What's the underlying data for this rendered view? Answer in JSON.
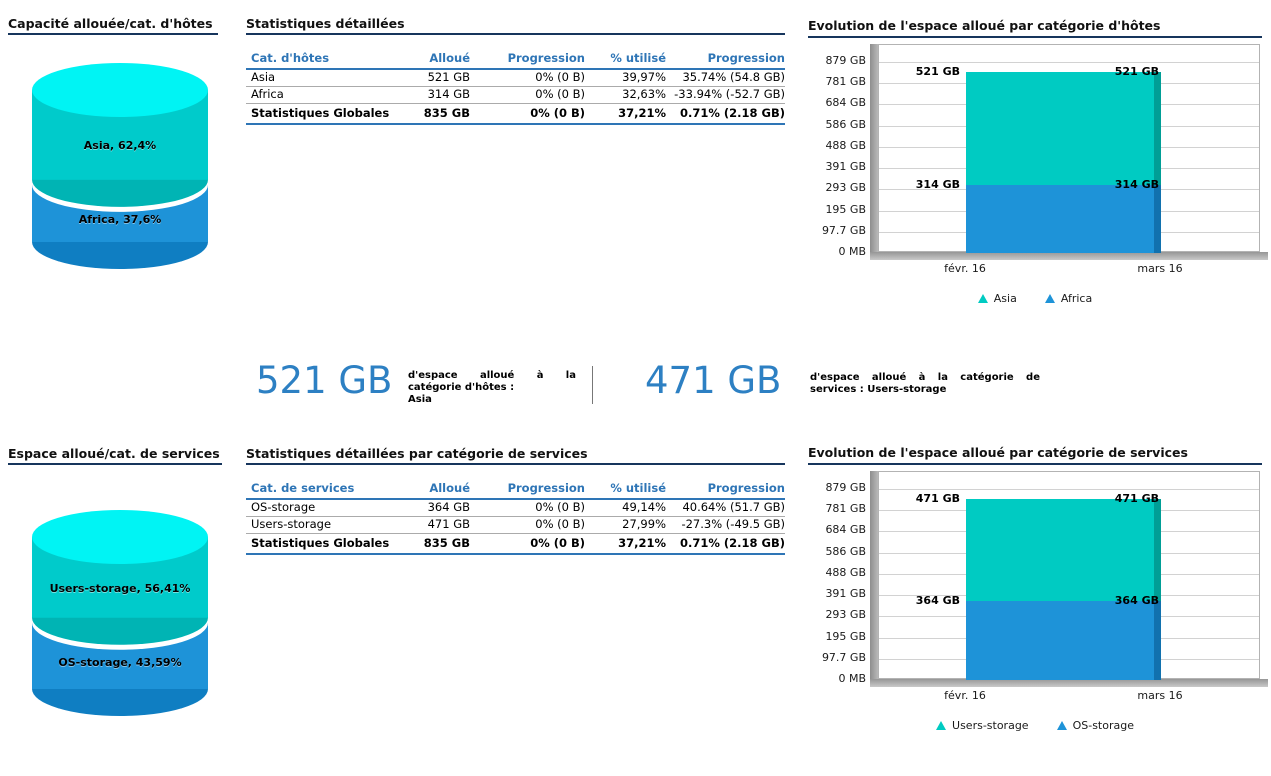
{
  "summary": {
    "value1": "521 GB",
    "desc1_prefix": "d'espace alloué à la catégorie d'hôtes :",
    "desc1_name": "Asia",
    "value2": "471 GB",
    "desc2_prefix": "d'espace alloué à la catégorie de services :",
    "desc2_name": "Users-storage"
  },
  "tables": {
    "host": {
      "title": "Statistiques détaillées",
      "columns": [
        "Cat. d'hôtes",
        "Alloué",
        "Progression",
        "% utilisé",
        "Progression"
      ],
      "rows": [
        [
          "Asia",
          "521 GB",
          "0% (0 B)",
          "39,97%",
          "35.74% (54.8 GB)"
        ],
        [
          "Africa",
          "314 GB",
          "0% (0 B)",
          "32,63%",
          "-33.94% (-52.7 GB)"
        ]
      ],
      "totals": [
        "Statistiques Globales",
        "835 GB",
        "0% (0 B)",
        "37,21%",
        "0.71% (2.18 GB)"
      ]
    },
    "service": {
      "title": "Statistiques détaillées par catégorie de services",
      "columns": [
        "Cat. de services",
        "Alloué",
        "Progression",
        "% utilisé",
        "Progression"
      ],
      "rows": [
        [
          "OS-storage",
          "364 GB",
          "0% (0 B)",
          "49,14%",
          "40.64% (51.7 GB)"
        ],
        [
          "Users-storage",
          "471 GB",
          "0% (0 B)",
          "27,99%",
          "-27.3% (-49.5 GB)"
        ]
      ],
      "totals": [
        "Statistiques Globales",
        "835 GB",
        "0% (0 B)",
        "37,21%",
        "0.71% (2.18 GB)"
      ]
    }
  },
  "chart_data": [
    {
      "type": "pie",
      "subtype": "cylinder-3d",
      "title": "Capacité allouée/cat. d'hôtes",
      "labels": [
        "Asia",
        "Africa"
      ],
      "values_pct": [
        62.4,
        37.6
      ],
      "display_labels": [
        "Asia, 62,4%",
        "Africa, 37,6%"
      ],
      "colors": [
        {
          "top": "#00f4f4",
          "body": "#00cbcb",
          "dark": "#00b4b4"
        },
        {
          "body": "#1e93d8",
          "dark": "#0f7ec2"
        }
      ]
    },
    {
      "type": "bar",
      "subtype": "stacked-3d",
      "title": "Evolution de l'espace alloué par catégorie d'hôtes",
      "x_labels": [
        "févr. 16",
        "mars 16"
      ],
      "y_ticks": [
        "879 GB",
        "781 GB",
        "684 GB",
        "586 GB",
        "488 GB",
        "391 GB",
        "293 GB",
        "195 GB",
        "97.7 GB",
        "0 MB"
      ],
      "y_max_gb": 879,
      "total_gb": 835,
      "series": [
        {
          "name": "Asia",
          "values_gb": [
            521,
            521
          ],
          "bar_label": "521 GB",
          "color": "#00cbc2",
          "dark": "#009e96"
        },
        {
          "name": "Africa",
          "values_gb": [
            314,
            314
          ],
          "bar_label": "314 GB",
          "color": "#1e93d8",
          "dark": "#1171ae"
        }
      ],
      "legend": [
        "Asia",
        "Africa"
      ],
      "legend_position": "bottom",
      "grid": true
    },
    {
      "type": "pie",
      "subtype": "cylinder-3d",
      "title": "Espace alloué/cat. de services",
      "labels": [
        "Users-storage",
        "OS-storage"
      ],
      "values_pct": [
        56.41,
        43.59
      ],
      "display_labels": [
        "Users-storage, 56,41%",
        "OS-storage, 43,59%"
      ],
      "colors": [
        {
          "top": "#00f4f4",
          "body": "#00cbcb",
          "dark": "#00b4b4"
        },
        {
          "body": "#1e93d8",
          "dark": "#0f7ec2"
        }
      ]
    },
    {
      "type": "bar",
      "subtype": "stacked-3d",
      "title": "Evolution de l'espace alloué par catégorie de services",
      "x_labels": [
        "févr. 16",
        "mars 16"
      ],
      "y_ticks": [
        "879 GB",
        "781 GB",
        "684 GB",
        "586 GB",
        "488 GB",
        "391 GB",
        "293 GB",
        "195 GB",
        "97.7 GB",
        "0 MB"
      ],
      "y_max_gb": 879,
      "total_gb": 835,
      "series": [
        {
          "name": "Users-storage",
          "values_gb": [
            471,
            471
          ],
          "bar_label": "471 GB",
          "color": "#00cbc2",
          "dark": "#009e96"
        },
        {
          "name": "OS-storage",
          "values_gb": [
            364,
            364
          ],
          "bar_label": "364 GB",
          "color": "#1e93d8",
          "dark": "#1171ae"
        }
      ],
      "legend": [
        "Users-storage",
        "OS-storage"
      ],
      "legend_position": "bottom",
      "grid": true
    }
  ]
}
